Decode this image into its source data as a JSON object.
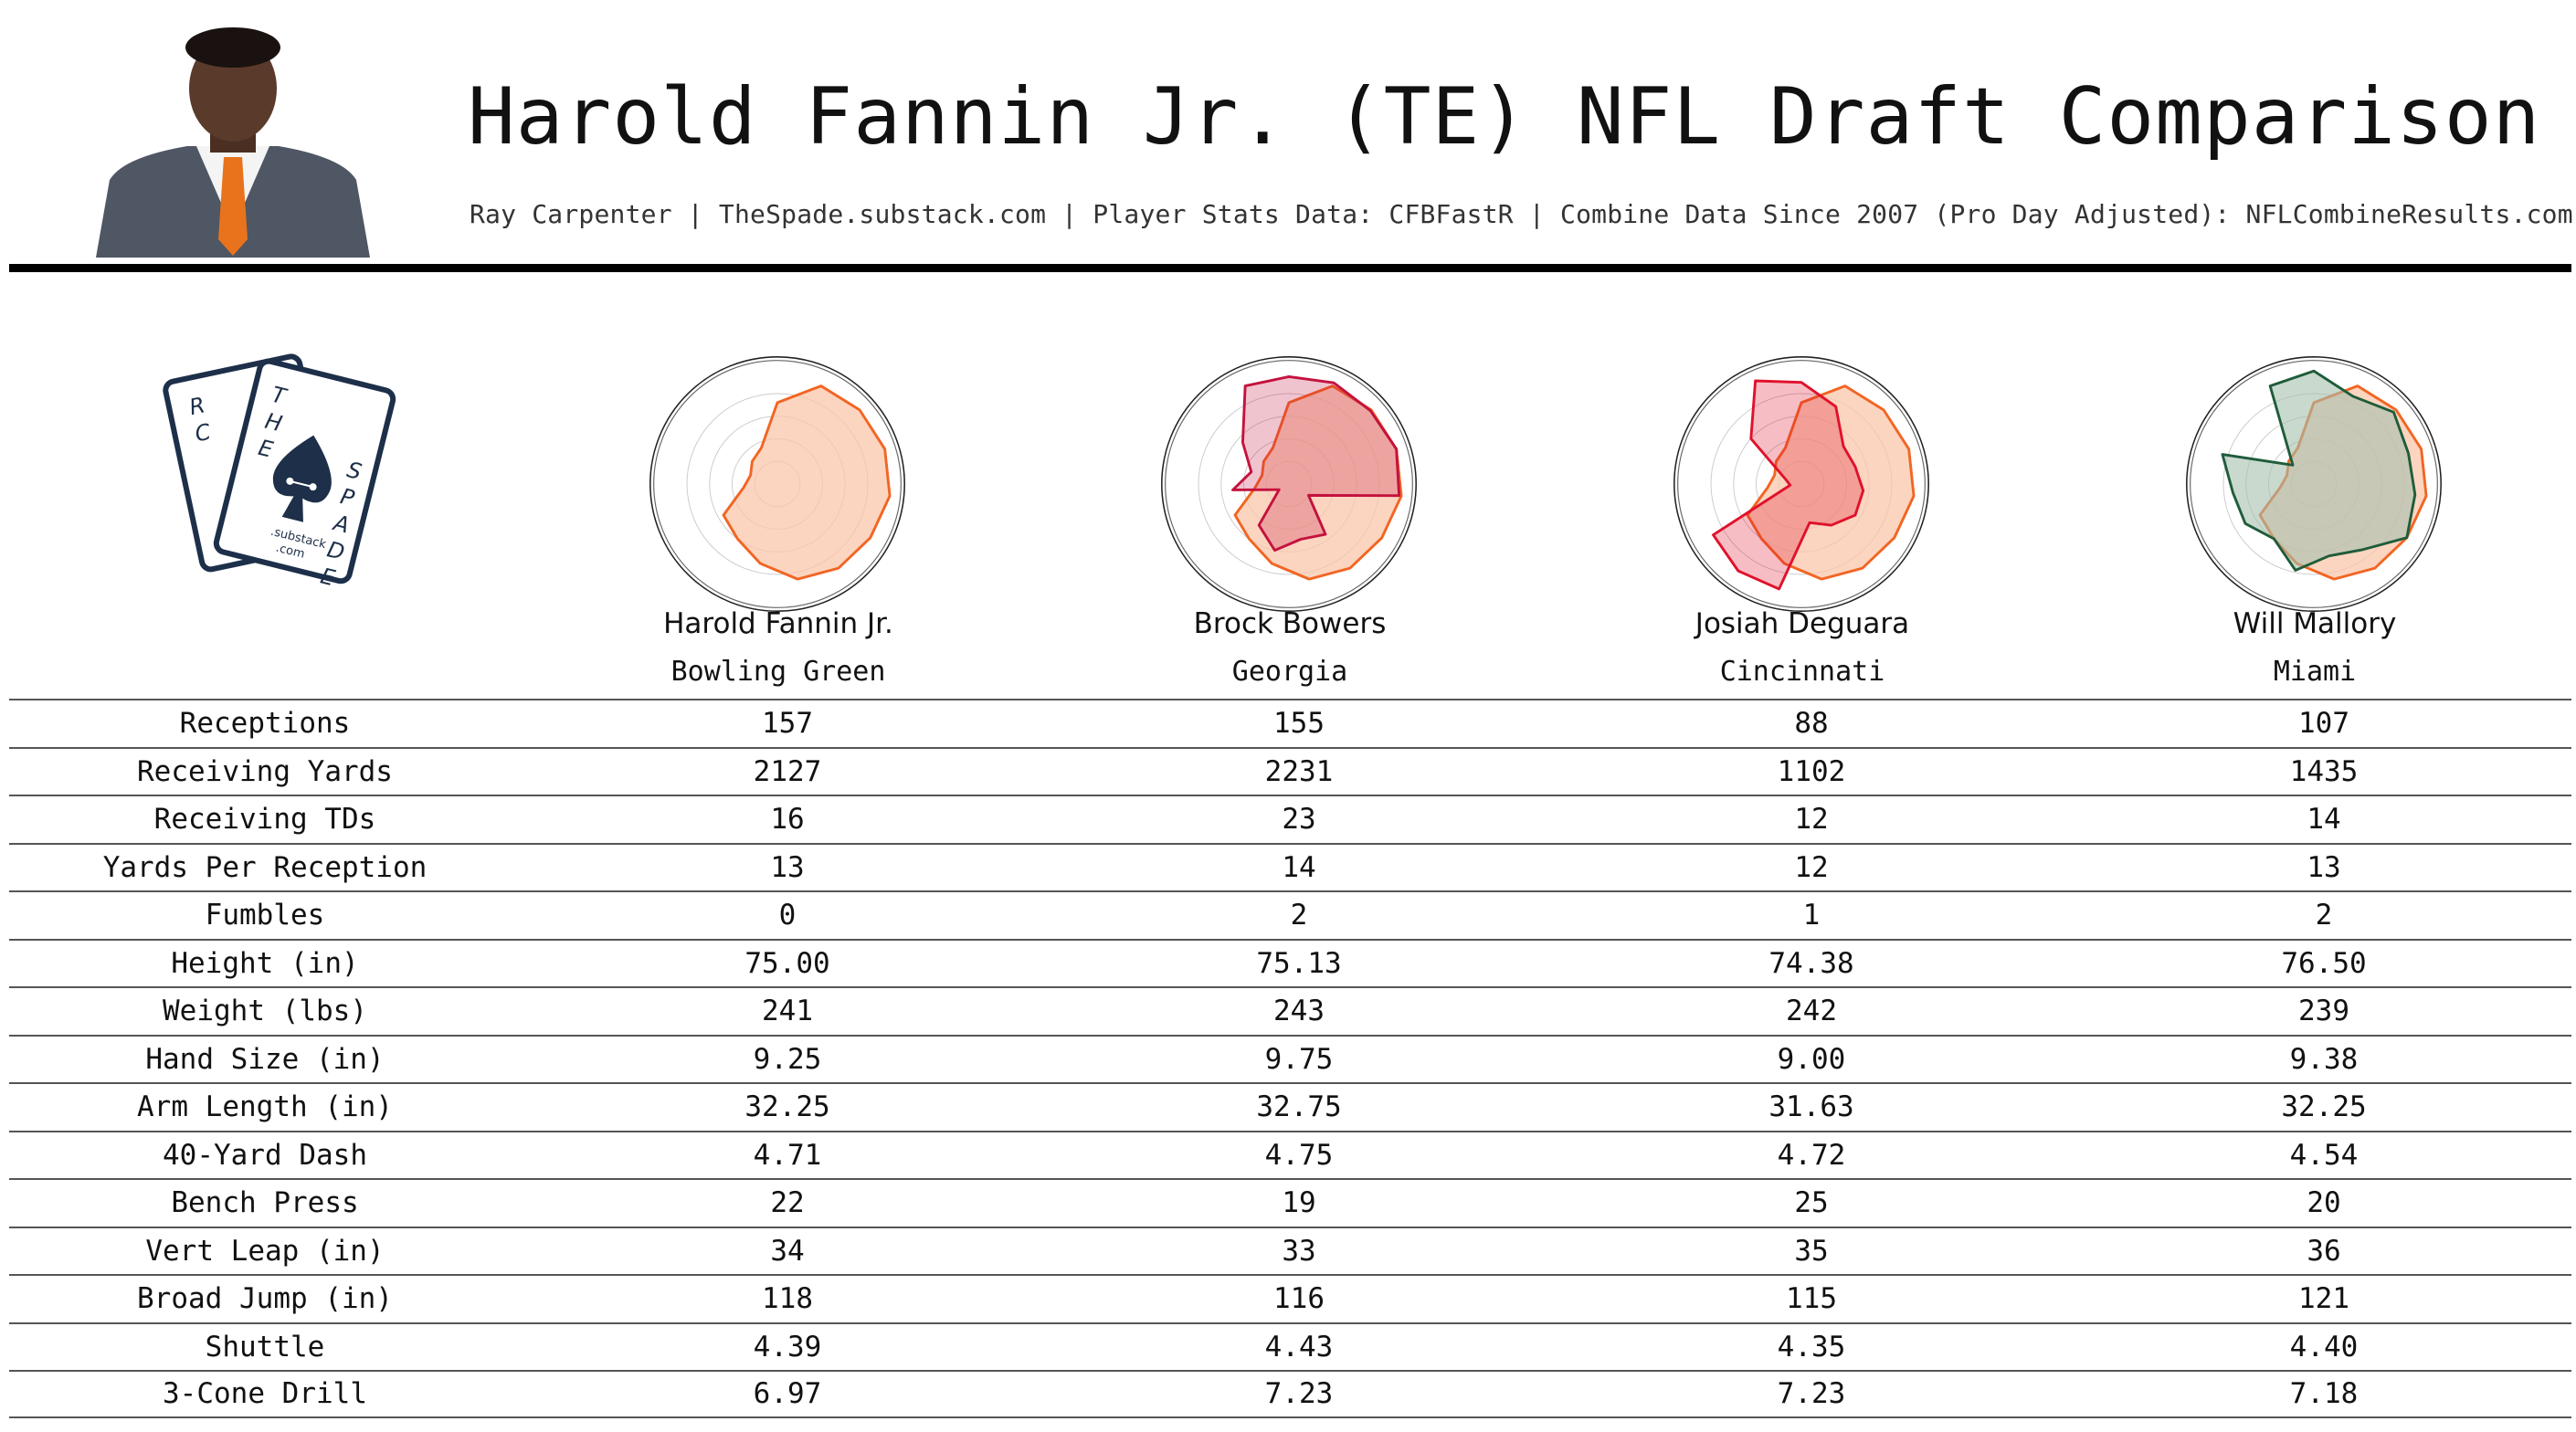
{
  "header": {
    "title": "Harold Fannin Jr. (TE) NFL Draft Comparison",
    "subtitle": "Ray Carpenter | TheSpade.substack.com | Player Stats Data: CFBFastR | Combine Data Since 2007 (Pro Day Adjusted): NFLCombineResults.com"
  },
  "logo": {
    "text_letters": [
      "R",
      "C",
      "T",
      "H",
      "E",
      "S",
      "P",
      "A",
      "D",
      "E"
    ],
    "sub1": ".substack",
    "sub2": ".com"
  },
  "colors": {
    "base_player": "#f26522",
    "base_fill": "#f9c7ab",
    "bowers": "#c4123e",
    "deguara": "#e0112b",
    "mallory": "#1f5c3a",
    "mallory_fill": "#a5bfae"
  },
  "players": [
    {
      "name": "Harold Fannin Jr.",
      "school": "Bowling Green"
    },
    {
      "name": "Brock Bowers",
      "school": "Georgia"
    },
    {
      "name": "Josiah Deguara",
      "school": "Cincinnati"
    },
    {
      "name": "Will Mallory",
      "school": "Miami"
    }
  ],
  "chart_data": {
    "type": "table",
    "columns": [
      "",
      "Harold Fannin Jr.",
      "Brock Bowers",
      "Josiah Deguara",
      "Will Mallory"
    ],
    "rows": [
      [
        "Receptions",
        "157",
        "155",
        "88",
        "107"
      ],
      [
        "Receiving Yards",
        "2127",
        "2231",
        "1102",
        "1435"
      ],
      [
        "Receiving TDs",
        "16",
        "23",
        "12",
        "14"
      ],
      [
        "Yards Per Reception",
        "13",
        "14",
        "12",
        "13"
      ],
      [
        "Fumbles",
        "0",
        "2",
        "1",
        "2"
      ],
      [
        "Height (in)",
        "75.00",
        "75.13",
        "74.38",
        "76.50"
      ],
      [
        "Weight (lbs)",
        "241",
        "243",
        "242",
        "239"
      ],
      [
        "Hand Size (in)",
        "9.25",
        "9.75",
        "9.00",
        "9.38"
      ],
      [
        "Arm Length (in)",
        "32.25",
        "32.75",
        "31.63",
        "32.25"
      ],
      [
        "40-Yard Dash",
        "4.71",
        "4.75",
        "4.72",
        "4.54"
      ],
      [
        "Bench Press",
        "22",
        "19",
        "25",
        "20"
      ],
      [
        "Vert Leap (in)",
        "34",
        "33",
        "35",
        "36"
      ],
      [
        "Broad Jump (in)",
        "118",
        "116",
        "115",
        "121"
      ],
      [
        "Shuttle",
        "4.39",
        "4.43",
        "4.35",
        "4.40"
      ],
      [
        "3-Cone Drill",
        "6.97",
        "7.23",
        "7.23",
        "7.18"
      ]
    ],
    "radar": {
      "type": "radar",
      "rings": 5,
      "axes": 15,
      "fannin": [
        0.72,
        0.95,
        0.98,
        1.0,
        1.0,
        0.95,
        0.92,
        0.86,
        0.72,
        0.6,
        0.55,
        0.3,
        0.25,
        0.3,
        0.35
      ],
      "comparisons": [
        {
          "player": "Brock Bowers",
          "values": [
            0.95,
            0.98,
            0.97,
            1.0,
            0.98,
            0.2,
            0.55,
            0.5,
            0.6,
            0.45,
            0.1,
            0.5,
            0.35,
            0.55,
            0.95
          ]
        },
        {
          "player": "Josiah Deguara",
          "values": [
            0.9,
            0.75,
            0.5,
            0.5,
            0.55,
            0.55,
            0.45,
            0.35,
            0.95,
            0.95,
            0.9,
            0.1,
            0.15,
            0.6,
            1.0
          ]
        },
        {
          "player": "Will Mallory",
          "values": [
            1.0,
            0.85,
            0.95,
            0.88,
            0.9,
            0.95,
            0.72,
            0.65,
            0.78,
            0.6,
            0.7,
            0.72,
            0.85,
            0.25,
            0.95
          ]
        }
      ]
    }
  }
}
